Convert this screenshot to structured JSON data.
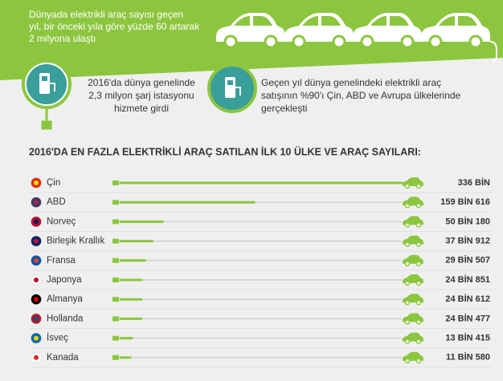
{
  "header": {
    "lines": [
      "Dünyada elektrikli araç sayısı geçen",
      "yıl, bir önceki yıla göre yüzde 60 artarak",
      "2 milyona ulaştı"
    ]
  },
  "facts": [
    {
      "lines": [
        "2016'da dünya genelinde",
        "2,3 milyon şarj istasyonu",
        "hizmete girdi"
      ]
    },
    {
      "lines": [
        "Geçen yıl dünya genelindeki elektrikli araç",
        "satışının %90'ı Çin, ABD ve Avrupa ülkelerinde",
        "gerçekleşti"
      ]
    }
  ],
  "chart_data": {
    "type": "bar",
    "title": "2016'DA EN FAZLA ELEKTRİKLİ ARAÇ SATILAN İLK 10 ÜLKE VE ARAÇ SAYILARI:",
    "categories": [
      "Çin",
      "ABD",
      "Norveç",
      "Birleşik Krallık",
      "Fransa",
      "Japonya",
      "Almanya",
      "Hollanda",
      "İsveç",
      "Kanada"
    ],
    "values": [
      336000,
      159616,
      50180,
      37912,
      29507,
      24851,
      24612,
      24477,
      13415,
      11580
    ],
    "value_labels": [
      "336 BİN",
      "159 BİN 616",
      "50 BİN 180",
      "37 BİN 912",
      "29 BİN 507",
      "24 BİN 851",
      "24 BİN 612",
      "24 BİN 477",
      "13 BİN 415",
      "11 BİN 580"
    ],
    "color": "#8cc63f"
  }
}
